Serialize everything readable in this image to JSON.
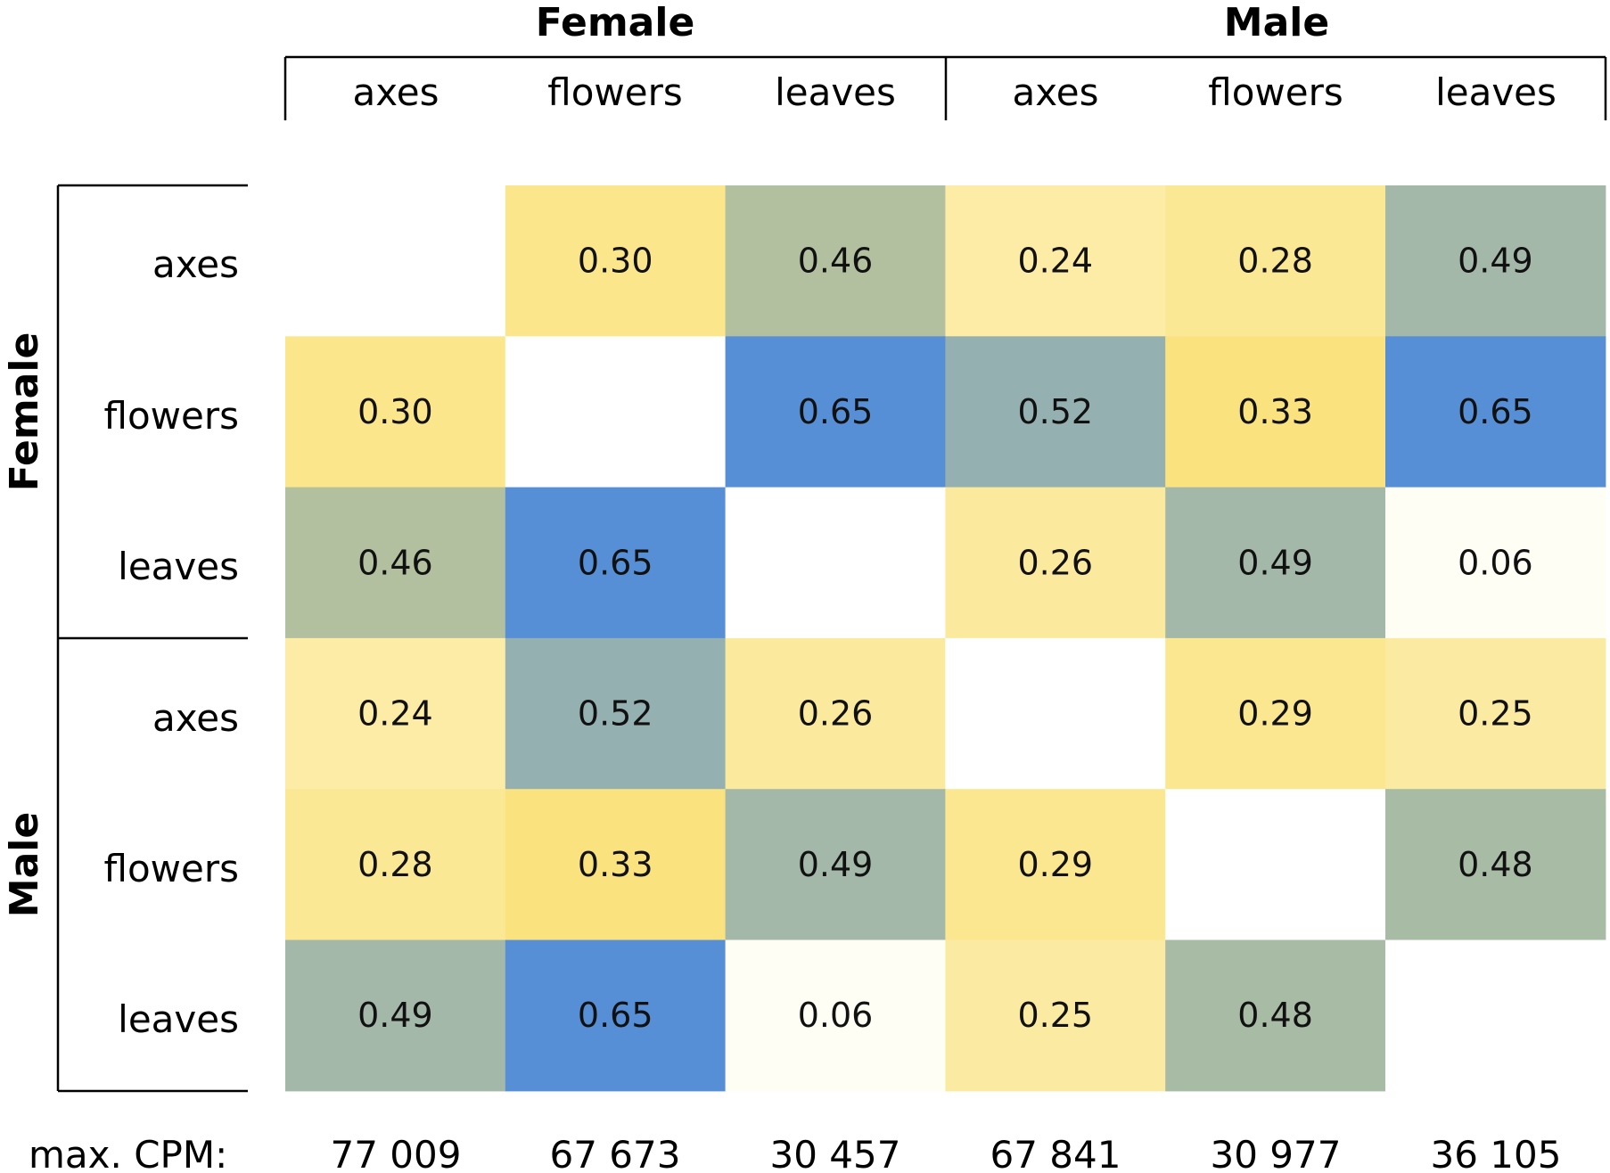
{
  "chart_data": {
    "type": "heatmap",
    "title": "",
    "column_groups": [
      {
        "name": "Female",
        "columns": [
          "axes",
          "flowers",
          "leaves"
        ]
      },
      {
        "name": "Male",
        "columns": [
          "axes",
          "flowers",
          "leaves"
        ]
      }
    ],
    "row_groups": [
      {
        "name": "Female",
        "rows": [
          "axes",
          "flowers",
          "leaves"
        ]
      },
      {
        "name": "Male",
        "rows": [
          "axes",
          "flowers",
          "leaves"
        ]
      }
    ],
    "values": [
      [
        null,
        0.3,
        0.46,
        0.24,
        0.28,
        0.49
      ],
      [
        0.3,
        null,
        0.65,
        0.52,
        0.33,
        0.65
      ],
      [
        0.46,
        0.65,
        null,
        0.26,
        0.49,
        0.06
      ],
      [
        0.24,
        0.52,
        0.26,
        null,
        0.29,
        0.25
      ],
      [
        0.28,
        0.33,
        0.49,
        0.29,
        null,
        0.48
      ],
      [
        0.49,
        0.65,
        0.06,
        0.25,
        0.48,
        null
      ]
    ],
    "value_labels": [
      [
        "",
        "0.30",
        "0.46",
        "0.24",
        "0.28",
        "0.49"
      ],
      [
        "0.30",
        "",
        "0.65",
        "0.52",
        "0.33",
        "0.65"
      ],
      [
        "0.46",
        "0.65",
        "",
        "0.26",
        "0.49",
        "0.06"
      ],
      [
        "0.24",
        "0.52",
        "0.26",
        "",
        "0.29",
        "0.25"
      ],
      [
        "0.28",
        "0.33",
        "0.49",
        "0.29",
        "",
        "0.48"
      ],
      [
        "0.49",
        "0.65",
        "0.06",
        "0.25",
        "0.48",
        ""
      ]
    ],
    "footer_label": "max. CPM:",
    "footer_values": [
      "77 009",
      "67 673",
      "30 457",
      "67 841",
      "30 977",
      "36 105"
    ],
    "colors": {
      "low": "#fffef5",
      "mid": "#fae37f",
      "grey": "#a3b8a8",
      "high": "#568fd5"
    }
  }
}
